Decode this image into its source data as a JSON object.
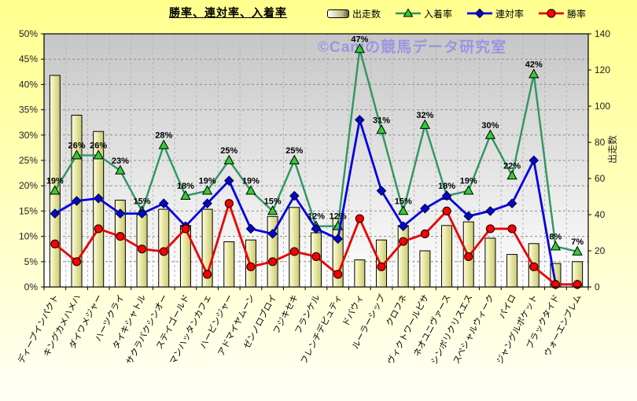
{
  "title": "勝率、連対率、入着率",
  "watermark": "©Caniの競馬データ研究室",
  "legend": [
    {
      "label": "出走数",
      "icon": "bar-swatch"
    },
    {
      "label": "入着率",
      "icon": "triangle-line-swatch"
    },
    {
      "label": "連対率",
      "icon": "diamond-line-swatch"
    },
    {
      "label": "勝率",
      "icon": "circle-line-swatch"
    }
  ],
  "left_axis_ticks": [
    "50%",
    "45%",
    "40%",
    "35%",
    "30%",
    "25%",
    "20%",
    "15%",
    "10%",
    "5%",
    "0%"
  ],
  "right_axis_ticks": [
    "140",
    "120",
    "100",
    "80",
    "60",
    "40",
    "20",
    "0"
  ],
  "right_axis_title": "出走数",
  "chart_data": {
    "type": "bar",
    "subtype": "combo-bar-and-lines",
    "title": "勝率、連対率、入着率",
    "grid": true,
    "legend_position": "top",
    "categories": [
      "ディープインパクト",
      "キングカメハメハ",
      "ダイワメジャー",
      "ハーツクライ",
      "タイキシャトル",
      "サクラバクシンオー",
      "ステイゴールド",
      "マンハッタンカフェ",
      "ハービンジャー",
      "アドマイヤムーン",
      "ゼンノロブロイ",
      "フジキセキ",
      "フランケル",
      "フレンチデピュティ",
      "ドバウィ",
      "ルーラーシップ",
      "クロフネ",
      "ヴィクトワールピサ",
      "ネオユニヴァース",
      "シンボリクリスエス",
      "スペシャルウィーク",
      "パイロ",
      "ジャングルポケット",
      "ブラックタイド",
      "ウォーエンブレム"
    ],
    "left_axis": {
      "min": 0,
      "max": 50,
      "step": 5,
      "format": "percent"
    },
    "right_axis": {
      "min": 0,
      "max": 140,
      "step": 20,
      "title": "出走数"
    },
    "series": [
      {
        "name": "出走数",
        "type": "bar",
        "axis": "right",
        "values": [
          117,
          95,
          86,
          48,
          40,
          43,
          34,
          43,
          25,
          26,
          39,
          44,
          30,
          38,
          15,
          26,
          34,
          20,
          34,
          36,
          27,
          18,
          24,
          13,
          14
        ]
      },
      {
        "name": "入着率",
        "type": "line",
        "marker": "triangle",
        "axis": "left",
        "values": [
          19,
          26,
          26,
          23,
          15,
          28,
          18,
          19,
          25,
          19,
          15,
          25,
          12,
          12,
          47,
          31,
          15,
          32,
          18,
          19,
          30,
          22,
          42,
          8,
          7
        ],
        "labels": [
          "19%",
          "26%",
          "26%",
          "23%",
          "15%",
          "28%",
          "18%",
          "19%",
          "25%",
          "19%",
          "15%",
          "25%",
          "12%",
          "12%",
          "47%",
          "31%",
          "15%",
          "32%",
          "18%",
          "19%",
          "30%",
          "22%",
          "42%",
          "8%",
          "7%"
        ]
      },
      {
        "name": "連対率",
        "type": "line",
        "marker": "diamond",
        "axis": "left",
        "values": [
          14.5,
          17,
          17.5,
          14.5,
          14.5,
          16.5,
          12,
          16.5,
          21,
          11.5,
          10.5,
          18,
          11.5,
          9.5,
          33,
          19,
          12,
          15.5,
          18,
          14,
          15,
          16.5,
          25,
          0.5,
          0.5
        ]
      },
      {
        "name": "勝率",
        "type": "line",
        "marker": "circle",
        "axis": "left",
        "values": [
          8.5,
          5,
          11.5,
          10,
          7.5,
          7,
          11.5,
          2.5,
          16.5,
          4,
          5,
          7,
          6,
          2.5,
          13.5,
          4,
          9,
          10.5,
          15,
          6,
          11.5,
          11.5,
          4,
          0.5,
          0.5
        ]
      }
    ]
  },
  "colors": {
    "placing_line": "#2e9660",
    "placing_marker": "#33cc33",
    "quinella_line": "#0000e0",
    "quinella_marker": "#0008cc",
    "win_line": "#e80000",
    "win_marker": "#ff0000",
    "bar_fill_light": "#ffffd8",
    "bar_fill_dark": "#c9c96e",
    "watermark": "#9a96e2",
    "plot_bg_top": "#c6c6c6",
    "plot_bg_bottom": "#ffffff",
    "grid_h": "#8c8c8c",
    "grid_v": "#b4b4b4"
  }
}
